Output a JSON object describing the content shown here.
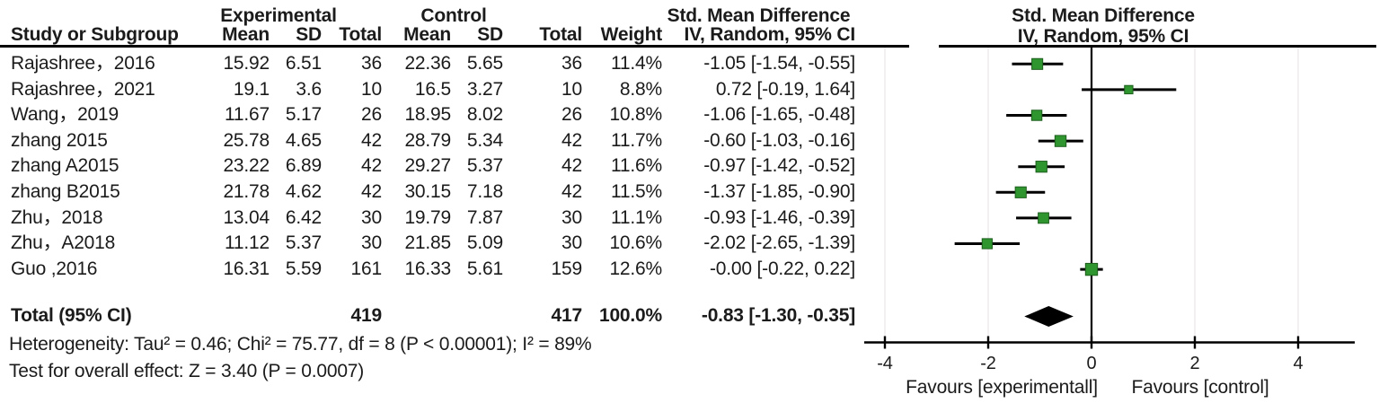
{
  "table": {
    "group_experimental": "Experimental",
    "group_control": "Control",
    "group_smd": "Std. Mean Difference",
    "columns": [
      "Study or Subgroup",
      "Mean",
      "SD",
      "Total",
      "Mean",
      "SD",
      "Total",
      "Weight",
      "IV, Random, 95% CI"
    ],
    "heterogeneity": "Heterogeneity: Tau² = 0.46; Chi² = 75.77, df = 8 (P < 0.00001); I² = 89%",
    "overall_effect": "Test for overall effect: Z = 3.40 (P = 0.0007)"
  },
  "plot": {
    "header_line1": "Std. Mean Difference",
    "header_line2": "IV, Random, 95% CI",
    "favours_left": "Favours [experimentall]",
    "favours_right": "Favours [control]",
    "marker_color": "#2f962f",
    "marker_border": "#1d5e1d",
    "line_color": "#000000",
    "grid_color": "#edeaea",
    "diamond_color": "#000000"
  },
  "chart_data": {
    "type": "forest",
    "effect_measure": "Std. Mean Difference, IV, Random, 95% CI",
    "xlim": [
      -4,
      4
    ],
    "ticks": [
      "-4",
      "-2",
      "0",
      "2",
      "4"
    ],
    "tick_values": [
      -4,
      -2,
      0,
      2,
      4
    ],
    "studies": [
      {
        "study": "Rajashree，2016",
        "mean_e": "15.92",
        "sd_e": "6.51",
        "total_e": "36",
        "mean_c": "22.36",
        "sd_c": "5.65",
        "total_c": "36",
        "weight": "11.4%",
        "ci_text": "-1.05 [-1.54, -0.55]",
        "smd": -1.05,
        "lo": -1.54,
        "hi": -0.55,
        "w": 11.4
      },
      {
        "study": "Rajashree，2021",
        "mean_e": "19.1",
        "sd_e": "3.6",
        "total_e": "10",
        "mean_c": "16.5",
        "sd_c": "3.27",
        "total_c": "10",
        "weight": "8.8%",
        "ci_text": "0.72 [-0.19, 1.64]",
        "smd": 0.72,
        "lo": -0.19,
        "hi": 1.64,
        "w": 8.8
      },
      {
        "study": "Wang，2019",
        "mean_e": "11.67",
        "sd_e": "5.17",
        "total_e": "26",
        "mean_c": "18.95",
        "sd_c": "8.02",
        "total_c": "26",
        "weight": "10.8%",
        "ci_text": "-1.06 [-1.65, -0.48]",
        "smd": -1.06,
        "lo": -1.65,
        "hi": -0.48,
        "w": 10.8
      },
      {
        "study": "zhang 2015",
        "mean_e": "25.78",
        "sd_e": "4.65",
        "total_e": "42",
        "mean_c": "28.79",
        "sd_c": "5.34",
        "total_c": "42",
        "weight": "11.7%",
        "ci_text": "-0.60 [-1.03, -0.16]",
        "smd": -0.6,
        "lo": -1.03,
        "hi": -0.16,
        "w": 11.7
      },
      {
        "study": "zhang A2015",
        "mean_e": "23.22",
        "sd_e": "6.89",
        "total_e": "42",
        "mean_c": "29.27",
        "sd_c": "5.37",
        "total_c": "42",
        "weight": "11.6%",
        "ci_text": "-0.97 [-1.42, -0.52]",
        "smd": -0.97,
        "lo": -1.42,
        "hi": -0.52,
        "w": 11.6
      },
      {
        "study": "zhang B2015",
        "mean_e": "21.78",
        "sd_e": "4.62",
        "total_e": "42",
        "mean_c": "30.15",
        "sd_c": "7.18",
        "total_c": "42",
        "weight": "11.5%",
        "ci_text": "-1.37 [-1.85, -0.90]",
        "smd": -1.37,
        "lo": -1.85,
        "hi": -0.9,
        "w": 11.5
      },
      {
        "study": "Zhu，2018",
        "mean_e": "13.04",
        "sd_e": "6.42",
        "total_e": "30",
        "mean_c": "19.79",
        "sd_c": "7.87",
        "total_c": "30",
        "weight": "11.1%",
        "ci_text": "-0.93 [-1.46, -0.39]",
        "smd": -0.93,
        "lo": -1.46,
        "hi": -0.39,
        "w": 11.1
      },
      {
        "study": "Zhu，A2018",
        "mean_e": "11.12",
        "sd_e": "5.37",
        "total_e": "30",
        "mean_c": "21.85",
        "sd_c": "5.09",
        "total_c": "30",
        "weight": "10.6%",
        "ci_text": "-2.02 [-2.65, -1.39]",
        "smd": -2.02,
        "lo": -2.65,
        "hi": -1.39,
        "w": 10.6
      },
      {
        "study": "Guo ,2016",
        "mean_e": "16.31",
        "sd_e": "5.59",
        "total_e": "161",
        "mean_c": "16.33",
        "sd_c": "5.61",
        "total_c": "159",
        "weight": "12.6%",
        "ci_text": "-0.00 [-0.22, 0.22]",
        "smd": -0.0,
        "lo": -0.22,
        "hi": 0.22,
        "w": 12.6
      }
    ],
    "total": {
      "label": "Total (95% CI)",
      "total_e": "419",
      "total_c": "417",
      "weight": "100.0%",
      "ci_text": "-0.83 [-1.30, -0.35]",
      "smd": -0.83,
      "lo": -1.3,
      "hi": -0.35
    }
  }
}
